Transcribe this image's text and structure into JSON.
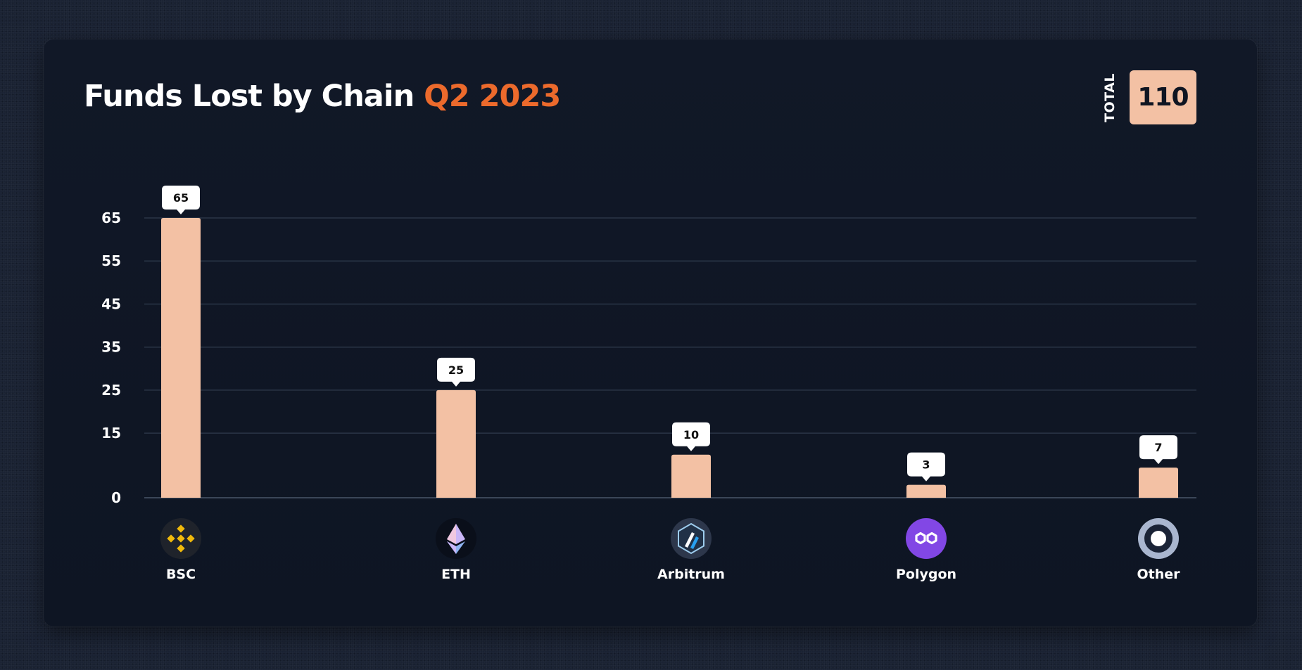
{
  "title": {
    "main": "Funds Lost by Chain",
    "accent": "Q2 2023"
  },
  "total": {
    "label": "TOTAL",
    "value": "110"
  },
  "colors": {
    "bar": "#f3c1a4",
    "accent": "#ec6a2c",
    "card": "#111827",
    "grid": "#2a3546"
  },
  "chart_data": {
    "type": "bar",
    "categories": [
      "BSC",
      "ETH",
      "Arbitrum",
      "Polygon",
      "Other"
    ],
    "values": [
      65,
      25,
      10,
      3,
      7
    ],
    "data_labels": [
      "65",
      "25",
      "10",
      "3",
      "7"
    ],
    "icons": [
      "bnb-chain-icon",
      "ethereum-icon",
      "arbitrum-icon",
      "polygon-icon",
      "other-chain-icon"
    ],
    "yticks": [
      0,
      15,
      25,
      35,
      45,
      55,
      65
    ],
    "ylim": [
      0,
      65
    ],
    "grid": true,
    "title": "Funds Lost by Chain Q2 2023",
    "xlabel": "",
    "ylabel": ""
  }
}
